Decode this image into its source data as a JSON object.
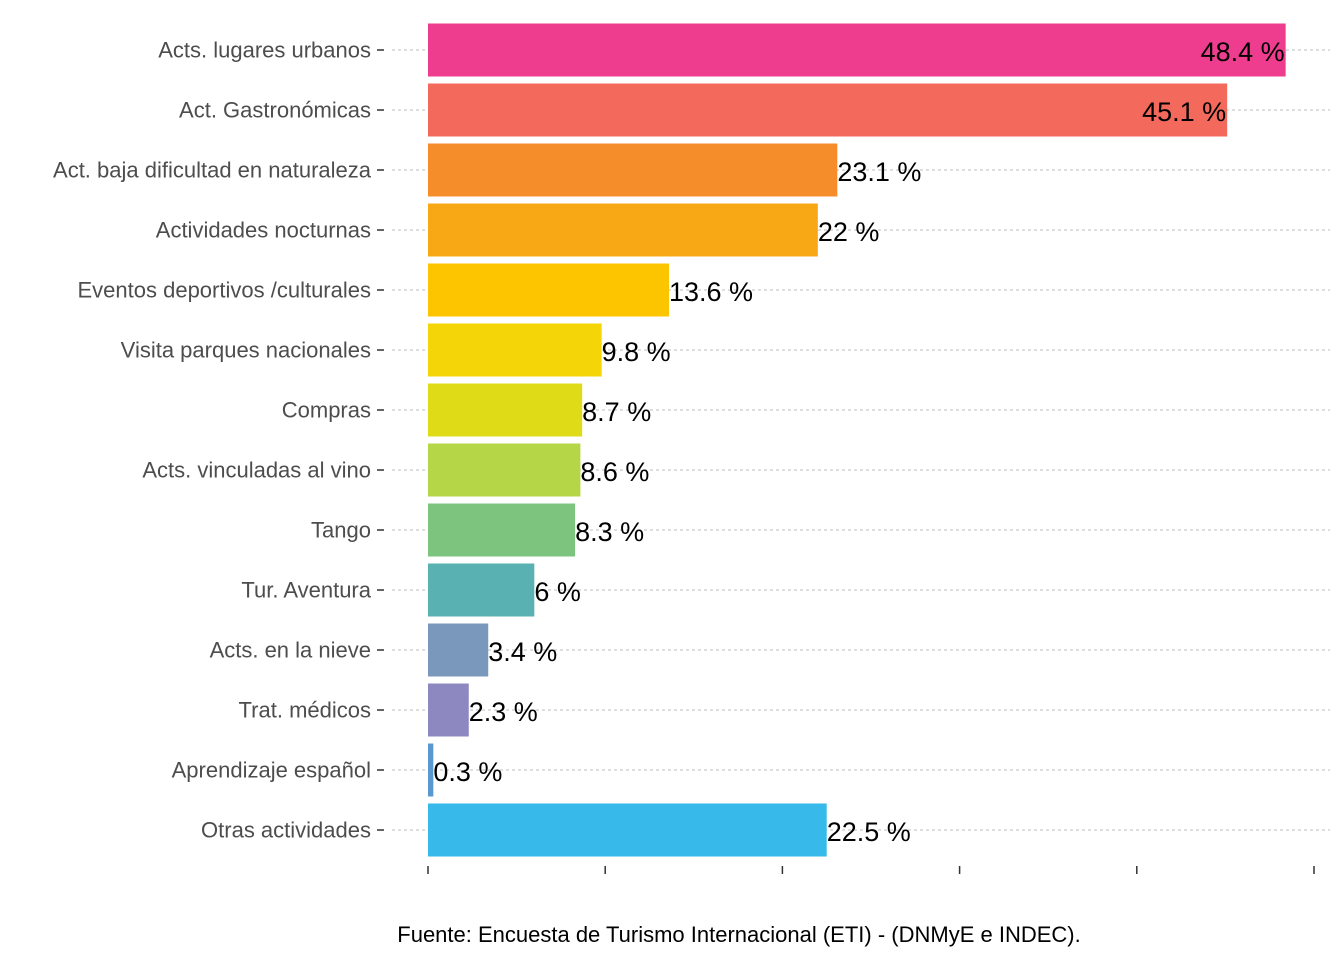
{
  "chart_data": {
    "type": "bar",
    "orientation": "horizontal",
    "categories": [
      "Acts. lugares urbanos",
      "Act. Gastronómicas",
      "Act. baja dificultad en naturaleza",
      "Actividades nocturnas",
      "Eventos deportivos /culturales",
      "Visita parques nacionales",
      "Compras",
      "Acts. vinculadas al vino",
      "Tango",
      "Tur. Aventura",
      "Acts. en la nieve",
      "Trat. médicos",
      "Aprendizaje español",
      "Otras actividades"
    ],
    "values": [
      48.4,
      45.1,
      23.1,
      22,
      13.6,
      9.8,
      8.7,
      8.6,
      8.3,
      6,
      3.4,
      2.3,
      0.3,
      22.5
    ],
    "value_labels": [
      "48.4 %",
      "45.1 %",
      "23.1 %",
      "22 %",
      "13.6 %",
      "9.8 %",
      "8.7 %",
      "8.6 %",
      "8.3 %",
      "6 %",
      "3.4 %",
      "2.3 %",
      "0.3 %",
      "22.5 %"
    ],
    "colors": [
      "#EE3D8F",
      "#F3695B",
      "#F58D2B",
      "#F9A815",
      "#FCC500",
      "#F3D508",
      "#DFDC17",
      "#B5D646",
      "#7DC47F",
      "#5AB1B2",
      "#7A98BB",
      "#8E88C1",
      "#5A98D0",
      "#37B9E9"
    ],
    "xlim": [
      0,
      50
    ],
    "x_ticks": [
      0,
      10,
      20,
      30,
      40,
      50
    ],
    "grid": "horizontal-dashed",
    "legend": "none",
    "title": "",
    "xlabel": "",
    "ylabel": ""
  },
  "caption": "Fuente: Encuesta de Turismo Internacional (ETI) - (DNMyE e INDEC)."
}
